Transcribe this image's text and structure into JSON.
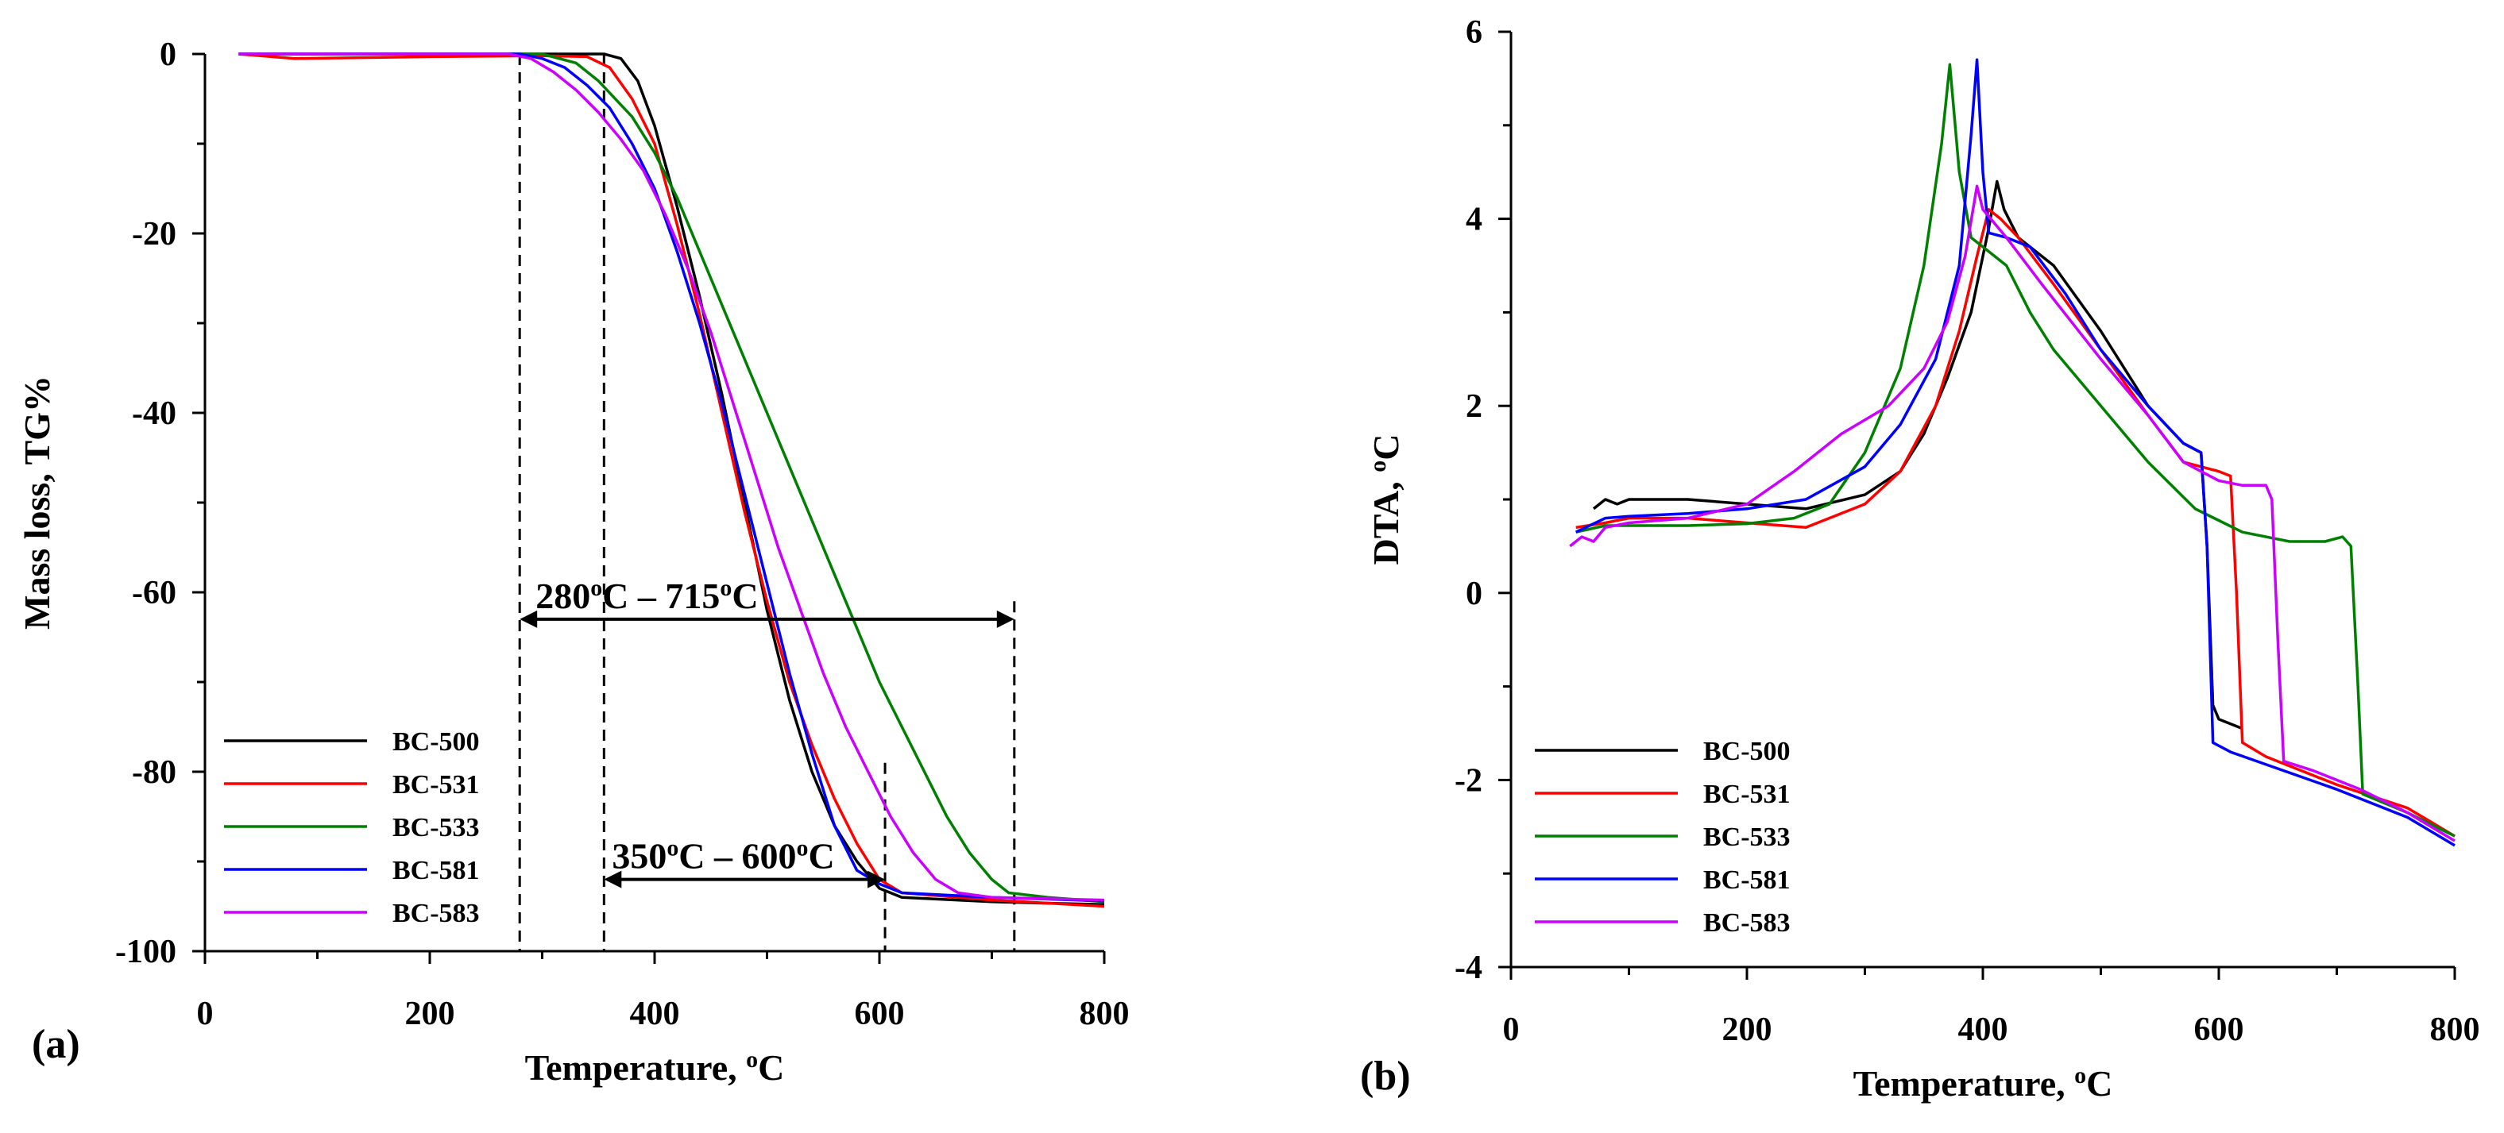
{
  "chart_data": [
    {
      "type": "line",
      "panel_label": "(a)",
      "xlabel": "Temperature, ",
      "xlabel_sup": "o",
      "xlabel_unit": "C",
      "ylabel": "Mass loss,  TG%",
      "xlim": [
        0,
        800
      ],
      "ylim": [
        -100,
        0
      ],
      "xticks": [
        0,
        200,
        400,
        600,
        800
      ],
      "yticks": [
        0,
        -20,
        -40,
        -60,
        -80,
        -100
      ],
      "legend": {
        "placement": "bottom-left",
        "entries": [
          "BC-500",
          "BC-531",
          "BC-533",
          "BC-581",
          "BC-583"
        ]
      },
      "series": [
        {
          "name": "BC-500",
          "color": "#000000",
          "points": [
            [
              30,
              0
            ],
            [
              300,
              0
            ],
            [
              355,
              0
            ],
            [
              370,
              -0.5
            ],
            [
              385,
              -3
            ],
            [
              400,
              -8
            ],
            [
              420,
              -17
            ],
            [
              440,
              -27
            ],
            [
              460,
              -38
            ],
            [
              480,
              -50
            ],
            [
              500,
              -62
            ],
            [
              520,
              -72
            ],
            [
              540,
              -80
            ],
            [
              560,
              -86
            ],
            [
              580,
              -90
            ],
            [
              600,
              -93
            ],
            [
              620,
              -94
            ],
            [
              700,
              -94.5
            ],
            [
              800,
              -94.8
            ]
          ]
        },
        {
          "name": "BC-531",
          "color": "#ff0000",
          "points": [
            [
              30,
              0
            ],
            [
              80,
              -0.5
            ],
            [
              200,
              -0.3
            ],
            [
              300,
              -0.2
            ],
            [
              340,
              -0.3
            ],
            [
              360,
              -1.5
            ],
            [
              380,
              -5
            ],
            [
              400,
              -10
            ],
            [
              420,
              -19
            ],
            [
              440,
              -29
            ],
            [
              460,
              -40
            ],
            [
              480,
              -51
            ],
            [
              500,
              -61
            ],
            [
              520,
              -70
            ],
            [
              540,
              -77
            ],
            [
              560,
              -83
            ],
            [
              580,
              -88
            ],
            [
              600,
              -92
            ],
            [
              620,
              -93.5
            ],
            [
              700,
              -94.3
            ],
            [
              800,
              -95
            ]
          ]
        },
        {
          "name": "BC-533",
          "color": "#008000",
          "points": [
            [
              30,
              0
            ],
            [
              300,
              0
            ],
            [
              330,
              -1
            ],
            [
              350,
              -3
            ],
            [
              380,
              -7
            ],
            [
              400,
              -11
            ],
            [
              420,
              -16
            ],
            [
              440,
              -22
            ],
            [
              460,
              -28
            ],
            [
              480,
              -34
            ],
            [
              500,
              -40
            ],
            [
              520,
              -46
            ],
            [
              540,
              -52
            ],
            [
              560,
              -58
            ],
            [
              580,
              -64
            ],
            [
              600,
              -70
            ],
            [
              620,
              -75
            ],
            [
              640,
              -80
            ],
            [
              660,
              -85
            ],
            [
              680,
              -89
            ],
            [
              700,
              -92
            ],
            [
              715,
              -93.5
            ],
            [
              750,
              -94
            ],
            [
              800,
              -94.5
            ]
          ]
        },
        {
          "name": "BC-581",
          "color": "#0000ff",
          "points": [
            [
              30,
              0
            ],
            [
              100,
              0
            ],
            [
              280,
              0
            ],
            [
              300,
              -0.5
            ],
            [
              320,
              -1.5
            ],
            [
              340,
              -3.5
            ],
            [
              360,
              -6
            ],
            [
              380,
              -10
            ],
            [
              400,
              -15
            ],
            [
              420,
              -22
            ],
            [
              440,
              -30
            ],
            [
              460,
              -39
            ],
            [
              480,
              -49
            ],
            [
              500,
              -59
            ],
            [
              520,
              -69
            ],
            [
              540,
              -78
            ],
            [
              560,
              -86
            ],
            [
              580,
              -91
            ],
            [
              600,
              -92.5
            ],
            [
              620,
              -93.5
            ],
            [
              700,
              -94
            ],
            [
              800,
              -94.4
            ]
          ]
        },
        {
          "name": "BC-583",
          "color": "#cc00ff",
          "points": [
            [
              30,
              0
            ],
            [
              200,
              0
            ],
            [
              270,
              0
            ],
            [
              290,
              -0.5
            ],
            [
              310,
              -2
            ],
            [
              330,
              -4
            ],
            [
              350,
              -6.5
            ],
            [
              370,
              -9.5
            ],
            [
              390,
              -13
            ],
            [
              410,
              -18
            ],
            [
              430,
              -24
            ],
            [
              450,
              -31
            ],
            [
              470,
              -39
            ],
            [
              490,
              -47
            ],
            [
              510,
              -55
            ],
            [
              530,
              -62
            ],
            [
              550,
              -69
            ],
            [
              570,
              -75
            ],
            [
              590,
              -80
            ],
            [
              610,
              -85
            ],
            [
              630,
              -89
            ],
            [
              650,
              -92
            ],
            [
              670,
              -93.5
            ],
            [
              700,
              -94
            ],
            [
              800,
              -94.3
            ]
          ]
        }
      ],
      "vlines": [
        280,
        355,
        605,
        720
      ],
      "annotations": [
        {
          "text_pre": "280",
          "sup1": "o",
          "text_mid": "C – 715",
          "sup2": "o",
          "text_post": "C",
          "y": -63,
          "x_from": 280,
          "x_to": 720
        },
        {
          "text_pre": "350",
          "sup1": "o",
          "text_mid": "C – 600",
          "sup2": "o",
          "text_post": "C",
          "y": -92,
          "x_from": 355,
          "x_to": 605
        }
      ]
    },
    {
      "type": "line",
      "panel_label": "(b)",
      "xlabel": "Temperature, ",
      "xlabel_sup": "o",
      "xlabel_unit": "C",
      "ylabel": "DTA, ",
      "ylabel_sup": "o",
      "ylabel_unit": "C",
      "xlim": [
        0,
        800
      ],
      "ylim": [
        -4,
        6
      ],
      "xticks": [
        0,
        200,
        400,
        600,
        800
      ],
      "yticks": [
        -4,
        -2,
        0,
        2,
        4,
        6
      ],
      "legend": {
        "placement": "bottom-left",
        "entries": [
          "BC-500",
          "BC-531",
          "BC-533",
          "BC-581",
          "BC-583"
        ]
      },
      "series": [
        {
          "name": "BC-500",
          "color": "#000000",
          "points": [
            [
              70,
              0.9
            ],
            [
              80,
              1.0
            ],
            [
              90,
              0.95
            ],
            [
              100,
              1.0
            ],
            [
              150,
              1.0
            ],
            [
              200,
              0.95
            ],
            [
              250,
              0.9
            ],
            [
              300,
              1.05
            ],
            [
              330,
              1.3
            ],
            [
              350,
              1.7
            ],
            [
              370,
              2.3
            ],
            [
              390,
              3.0
            ],
            [
              405,
              3.9
            ],
            [
              412,
              4.4
            ],
            [
              418,
              4.1
            ],
            [
              430,
              3.8
            ],
            [
              460,
              3.5
            ],
            [
              500,
              2.8
            ],
            [
              540,
              2.0
            ],
            [
              570,
              1.6
            ],
            [
              585,
              1.5
            ],
            [
              590,
              0.5
            ],
            [
              595,
              -1.2
            ],
            [
              600,
              -1.35
            ],
            [
              620,
              -1.45
            ]
          ]
        },
        {
          "name": "BC-531",
          "color": "#ff0000",
          "points": [
            [
              55,
              0.7
            ],
            [
              80,
              0.75
            ],
            [
              100,
              0.8
            ],
            [
              150,
              0.8
            ],
            [
              200,
              0.75
            ],
            [
              250,
              0.7
            ],
            [
              300,
              0.95
            ],
            [
              330,
              1.3
            ],
            [
              360,
              2.0
            ],
            [
              380,
              2.8
            ],
            [
              395,
              3.6
            ],
            [
              405,
              4.1
            ],
            [
              415,
              4.0
            ],
            [
              430,
              3.8
            ],
            [
              460,
              3.3
            ],
            [
              500,
              2.6
            ],
            [
              540,
              1.9
            ],
            [
              570,
              1.4
            ],
            [
              600,
              1.3
            ],
            [
              610,
              1.25
            ],
            [
              615,
              0.0
            ],
            [
              620,
              -1.6
            ],
            [
              640,
              -1.75
            ],
            [
              700,
              -2.05
            ],
            [
              760,
              -2.3
            ],
            [
              800,
              -2.6
            ]
          ]
        },
        {
          "name": "BC-533",
          "color": "#008000",
          "points": [
            [
              55,
              0.65
            ],
            [
              80,
              0.72
            ],
            [
              100,
              0.72
            ],
            [
              150,
              0.72
            ],
            [
              200,
              0.74
            ],
            [
              240,
              0.8
            ],
            [
              270,
              0.95
            ],
            [
              300,
              1.5
            ],
            [
              330,
              2.4
            ],
            [
              350,
              3.5
            ],
            [
              365,
              4.8
            ],
            [
              372,
              5.65
            ],
            [
              380,
              4.5
            ],
            [
              390,
              3.8
            ],
            [
              400,
              3.7
            ],
            [
              420,
              3.5
            ],
            [
              440,
              3.0
            ],
            [
              460,
              2.6
            ],
            [
              500,
              2.0
            ],
            [
              540,
              1.4
            ],
            [
              580,
              0.9
            ],
            [
              620,
              0.65
            ],
            [
              660,
              0.55
            ],
            [
              690,
              0.55
            ],
            [
              705,
              0.6
            ],
            [
              712,
              0.5
            ],
            [
              718,
              -1.0
            ],
            [
              722,
              -2.15
            ],
            [
              760,
              -2.35
            ],
            [
              800,
              -2.6
            ]
          ]
        },
        {
          "name": "BC-581",
          "color": "#0000ff",
          "points": [
            [
              55,
              0.65
            ],
            [
              80,
              0.8
            ],
            [
              100,
              0.82
            ],
            [
              150,
              0.85
            ],
            [
              200,
              0.9
            ],
            [
              250,
              1.0
            ],
            [
              300,
              1.35
            ],
            [
              330,
              1.8
            ],
            [
              360,
              2.5
            ],
            [
              380,
              3.5
            ],
            [
              390,
              4.9
            ],
            [
              395,
              5.7
            ],
            [
              400,
              4.5
            ],
            [
              405,
              3.85
            ],
            [
              420,
              3.8
            ],
            [
              440,
              3.7
            ],
            [
              470,
              3.2
            ],
            [
              500,
              2.6
            ],
            [
              540,
              2.0
            ],
            [
              570,
              1.6
            ],
            [
              585,
              1.5
            ],
            [
              590,
              0.5
            ],
            [
              595,
              -1.6
            ],
            [
              610,
              -1.7
            ],
            [
              700,
              -2.1
            ],
            [
              760,
              -2.4
            ],
            [
              800,
              -2.7
            ]
          ]
        },
        {
          "name": "BC-583",
          "color": "#cc00ff",
          "points": [
            [
              50,
              0.5
            ],
            [
              60,
              0.6
            ],
            [
              70,
              0.55
            ],
            [
              80,
              0.7
            ],
            [
              100,
              0.75
            ],
            [
              150,
              0.8
            ],
            [
              200,
              0.95
            ],
            [
              240,
              1.3
            ],
            [
              280,
              1.7
            ],
            [
              320,
              2.0
            ],
            [
              350,
              2.4
            ],
            [
              370,
              2.9
            ],
            [
              385,
              3.6
            ],
            [
              395,
              4.35
            ],
            [
              400,
              4.1
            ],
            [
              420,
              3.8
            ],
            [
              450,
              3.3
            ],
            [
              500,
              2.5
            ],
            [
              540,
              1.9
            ],
            [
              570,
              1.4
            ],
            [
              600,
              1.2
            ],
            [
              620,
              1.15
            ],
            [
              640,
              1.15
            ],
            [
              645,
              1.0
            ],
            [
              650,
              -0.5
            ],
            [
              655,
              -1.8
            ],
            [
              680,
              -1.9
            ],
            [
              720,
              -2.1
            ],
            [
              760,
              -2.35
            ],
            [
              800,
              -2.65
            ]
          ]
        }
      ]
    }
  ]
}
